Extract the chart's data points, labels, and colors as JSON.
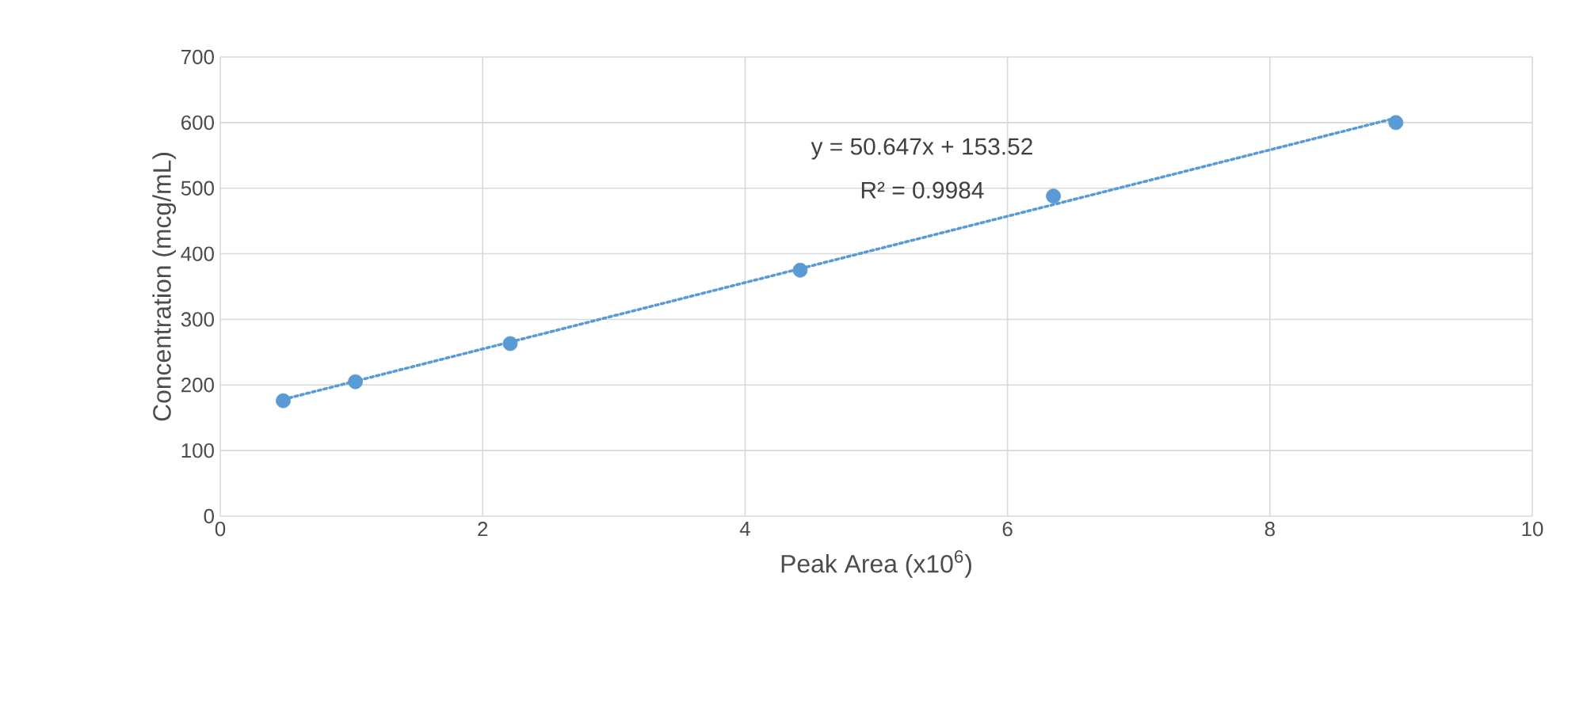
{
  "chart_data": {
    "type": "scatter",
    "xlabel": "Peak Area (x10$^{6}$)",
    "ylabel": "Concentration (mcg/mL)",
    "xlim": [
      0,
      10
    ],
    "xticks": [
      0,
      2,
      4,
      6,
      8,
      10
    ],
    "ylim": [
      0,
      700
    ],
    "yticks": [
      0,
      100,
      200,
      300,
      400,
      500,
      600,
      700
    ],
    "grid": true,
    "series": [
      {
        "color": "#5b9bd5",
        "marker": "circle",
        "x": [
          0.48,
          1.03,
          2.21,
          4.42,
          6.35,
          8.96
        ],
        "values": [
          176,
          205,
          263,
          375,
          488,
          600
        ]
      },
      {
        "type": "line",
        "color": "#5b9bd5",
        "line_style": "dotted",
        "marker": "none",
        "x": [
          0.48,
          8.96
        ],
        "values": [
          178,
          607
        ]
      }
    ],
    "annotations": [
      "y = 50.647x + 153.52",
      "R² = 0.9984"
    ]
  }
}
